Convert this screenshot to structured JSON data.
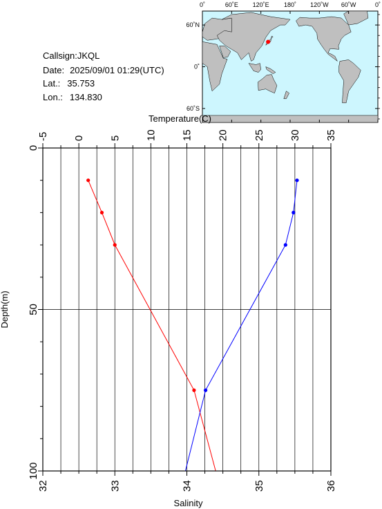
{
  "station": {
    "callsign_label": "Callsign:",
    "callsign": "JKQL",
    "date_label": "Date:",
    "date": "2025/09/01 01:29(UTC)",
    "lat_label": "Lat.:",
    "lat": "35.753",
    "lon_label": "Lon.:",
    "lon": "134.830"
  },
  "map": {
    "top_labels": [
      "0˚",
      "60˚E",
      "120˚E",
      "180˚",
      "120˚W",
      "60˚W",
      "0˚"
    ],
    "left_labels": [
      "60˚N",
      "0˚",
      "60˚S"
    ],
    "ocean_color": "#cdf6fe",
    "land_color": "#bfbfbf",
    "marker_color": "#ff0000",
    "marker": {
      "lon": 134.83,
      "lat": 35.753
    }
  },
  "chart_data": {
    "type": "line",
    "top_axis": {
      "label": "Temperature(C)",
      "range": [
        -5,
        35
      ],
      "ticks": [
        -5,
        0,
        5,
        10,
        15,
        20,
        25,
        30,
        35
      ]
    },
    "bottom_axis": {
      "label": "Salinity",
      "range": [
        32,
        36
      ],
      "ticks": [
        32,
        33,
        34,
        35,
        36
      ]
    },
    "y_axis": {
      "label": "Depth(m)",
      "range": [
        0,
        100
      ],
      "inverted": true,
      "ticks": [
        0,
        50,
        100
      ]
    },
    "grid": true,
    "series": [
      {
        "quantity": "temperature",
        "color": "#ff0000",
        "points": [
          {
            "depth": 10,
            "value": 1.3
          },
          {
            "depth": 20,
            "value": 3.2
          },
          {
            "depth": 30,
            "value": 5.0
          },
          {
            "depth": 75,
            "value": 16.0
          },
          {
            "depth": 100,
            "value": 19.0
          }
        ],
        "markers_at_depths": [
          10,
          20,
          30,
          75
        ]
      },
      {
        "quantity": "salinity",
        "color": "#0000ff",
        "points": [
          {
            "depth": 10,
            "value": 35.53
          },
          {
            "depth": 20,
            "value": 35.48
          },
          {
            "depth": 30,
            "value": 35.37
          },
          {
            "depth": 75,
            "value": 34.26
          },
          {
            "depth": 100,
            "value": 33.98
          }
        ],
        "markers_at_depths": [
          10,
          20,
          30,
          75
        ]
      }
    ]
  }
}
